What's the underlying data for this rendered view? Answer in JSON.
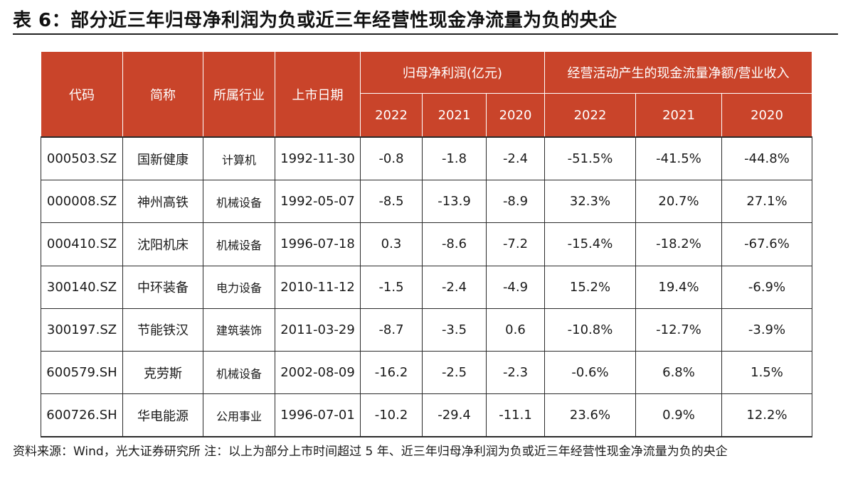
{
  "title": "表 6：部分近三年归母净利润为负或近三年经营性现金净流量为负的央企",
  "table": {
    "headers": {
      "code": "代码",
      "name": "简称",
      "industry": "所属行业",
      "list_date": "上市日期",
      "profit_group": "归母净利润(亿元)",
      "cashflow_group": "经营活动产生的现金流量净额/营业收入",
      "years": [
        "2022",
        "2021",
        "2020",
        "2022",
        "2021",
        "2020"
      ]
    },
    "rows": [
      {
        "code": "000503.SZ",
        "name": "国新健康",
        "industry": "计算机",
        "list_date": "1992-11-30",
        "values": [
          "-0.8",
          "-1.8",
          "-2.4",
          "-51.5%",
          "-41.5%",
          "-44.8%"
        ]
      },
      {
        "code": "000008.SZ",
        "name": "神州高铁",
        "industry": "机械设备",
        "list_date": "1992-05-07",
        "values": [
          "-8.5",
          "-13.9",
          "-8.9",
          "32.3%",
          "20.7%",
          "27.1%"
        ]
      },
      {
        "code": "000410.SZ",
        "name": "沈阳机床",
        "industry": "机械设备",
        "list_date": "1996-07-18",
        "values": [
          "0.3",
          "-8.6",
          "-7.2",
          "-15.4%",
          "-18.2%",
          "-67.6%"
        ]
      },
      {
        "code": "300140.SZ",
        "name": "中环装备",
        "industry": "电力设备",
        "list_date": "2010-11-12",
        "values": [
          "-1.5",
          "-2.4",
          "-4.9",
          "15.2%",
          "19.4%",
          "-6.9%"
        ]
      },
      {
        "code": "300197.SZ",
        "name": "节能铁汉",
        "industry": "建筑装饰",
        "list_date": "2011-03-29",
        "values": [
          "-8.7",
          "-3.5",
          "0.6",
          "-10.8%",
          "-12.7%",
          "-3.9%"
        ]
      },
      {
        "code": "600579.SH",
        "name": "克劳斯",
        "industry": "机械设备",
        "list_date": "2002-08-09",
        "values": [
          "-16.2",
          "-2.5",
          "-2.3",
          "-0.6%",
          "6.8%",
          "1.5%"
        ]
      },
      {
        "code": "600726.SH",
        "name": "华电能源",
        "industry": "公用事业",
        "list_date": "1996-07-01",
        "values": [
          "-10.2",
          "-29.4",
          "-11.1",
          "23.6%",
          "0.9%",
          "12.2%"
        ]
      }
    ]
  },
  "footnote": "资料来源：Wind，光大证券研究所 注：以上为部分上市时间超过 5 年、近三年归母净利润为负或近三年经营性现金净流量为负的央企",
  "colors": {
    "header_bg": "#c9442a",
    "header_text": "#ffffff",
    "border": "#2a2a2a"
  }
}
